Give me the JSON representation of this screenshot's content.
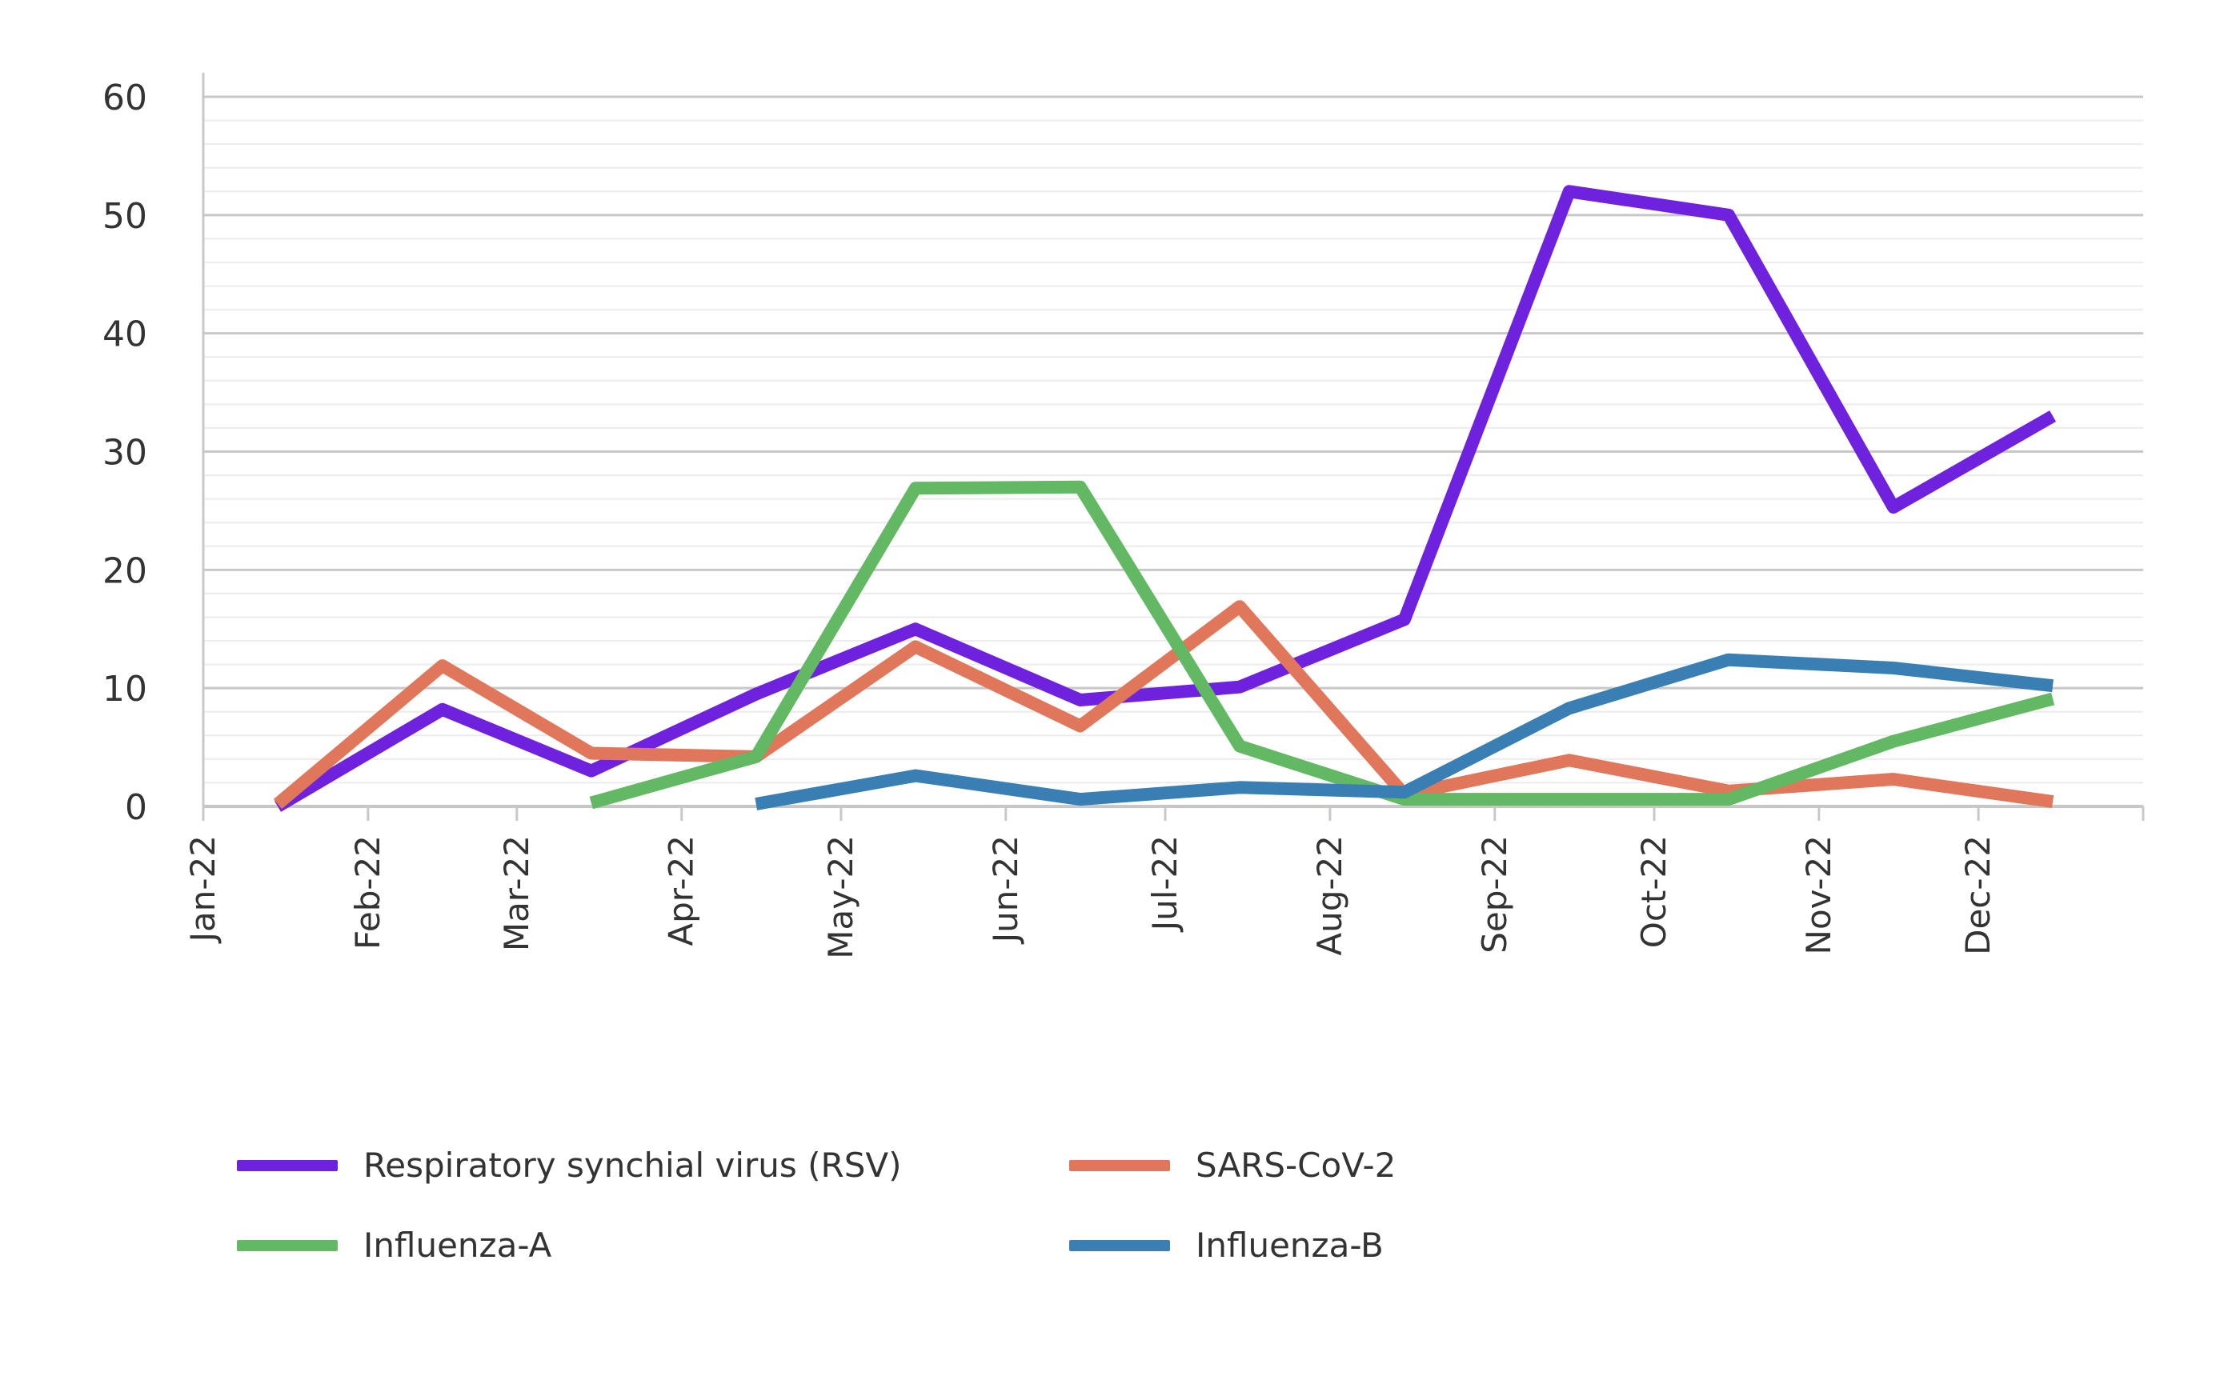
{
  "chart_data": {
    "type": "line",
    "title": "",
    "xlabel": "",
    "ylabel": "",
    "ylim": [
      0,
      60
    ],
    "yticks": [
      0,
      10,
      20,
      30,
      40,
      50,
      60
    ],
    "x_tick_labels": [
      "Jan-22",
      "Feb-22",
      "Mar-22",
      "Apr-22",
      "May-22",
      "Jun-22",
      "Jul-22",
      "Aug-22",
      "Sep-22",
      "Oct-22",
      "Nov-22",
      "Dec-22"
    ],
    "x_points": [
      "2022-01-15",
      "2022-02-15",
      "2022-03-15",
      "2022-04-15",
      "2022-05-15",
      "2022-06-15",
      "2022-07-15",
      "2022-08-15",
      "2022-09-15",
      "2022-10-15",
      "2022-11-15",
      "2022-12-15"
    ],
    "grid": true,
    "legend_position": "bottom",
    "series": [
      {
        "name": "Respiratory synchial virus (RSV)",
        "color": "#6f22de",
        "values": [
          0,
          8.2,
          3.0,
          9.5,
          15.0,
          9.0,
          10.1,
          15.8,
          52.0,
          50.0,
          25.3,
          33.0
        ]
      },
      {
        "name": "SARS-CoV-2",
        "color": "#e0775a",
        "values": [
          0.2,
          11.9,
          4.5,
          4.2,
          13.5,
          6.8,
          16.9,
          1.0,
          3.9,
          1.3,
          2.3,
          0.4
        ]
      },
      {
        "name": "Influenza-A",
        "color": "#62b863",
        "values": [
          null,
          null,
          0.3,
          4.2,
          26.9,
          27.0,
          5.1,
          0.6,
          0.6,
          0.6,
          5.5,
          9.1
        ]
      },
      {
        "name": "Influenza-B",
        "color": "#3a7fb3",
        "values": [
          null,
          null,
          null,
          0.2,
          2.6,
          0.6,
          1.6,
          1.2,
          8.3,
          12.4,
          11.7,
          10.2
        ]
      }
    ]
  }
}
